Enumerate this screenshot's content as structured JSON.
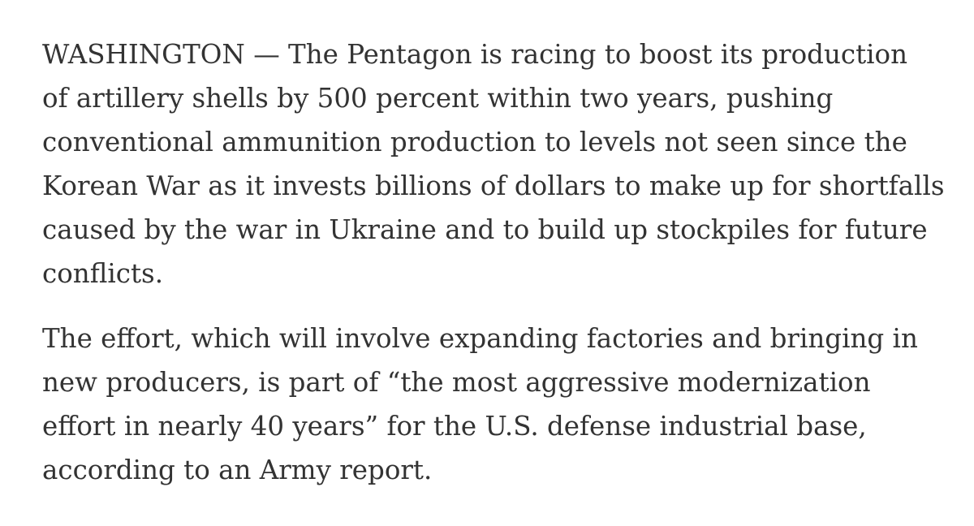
{
  "article": {
    "paragraphs": [
      {
        "lines": [
          "WASHINGTON — The Pentagon is racing to boost its production",
          "of artillery shells by 500 percent within two years, pushing",
          "conventional ammunition production to levels not seen since the",
          "Korean War as it invests billions of dollars to make up for shortfalls",
          "caused by the war in Ukraine and to build up stockpiles for future",
          "conflicts."
        ]
      },
      {
        "lines": [
          "The effort, which will involve expanding factories and bringing in",
          "new producers, is part of “the most aggressive modernization",
          "effort in nearly 40 years” for the U.S. defense industrial base,",
          "according to an Army report."
        ]
      }
    ]
  }
}
